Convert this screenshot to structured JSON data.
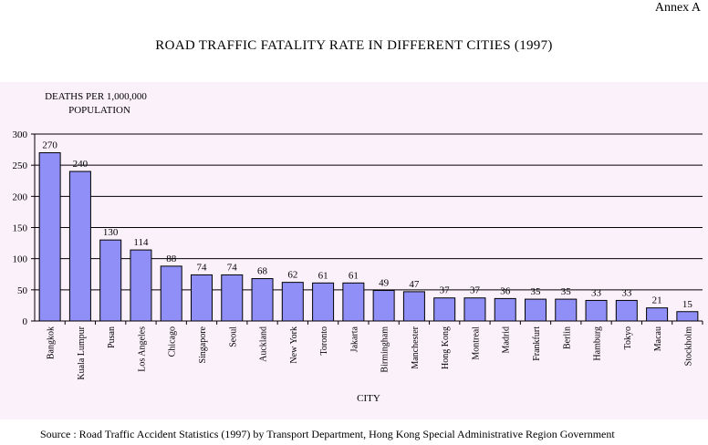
{
  "header": {
    "annex": "Annex A",
    "title": "ROAD TRAFFIC FATALITY RATE IN DIFFERENT CITIES (1997)"
  },
  "footer": {
    "source": "Source : Road Traffic Accident Statistics (1997) by Transport Department, Hong Kong Special Administrative Region Government"
  },
  "chart_data": {
    "type": "bar",
    "title": "ROAD TRAFFIC FATALITY RATE IN DIFFERENT CITIES (1997)",
    "ylabel_lines": [
      "DEATHS PER 1,000,000",
      "POPULATION"
    ],
    "xlabel": "CITY",
    "ylim": [
      0,
      300
    ],
    "yticks": [
      "0",
      "50",
      "100",
      "150",
      "200",
      "250",
      "300"
    ],
    "grid": true,
    "bar_color": "#8f8ff7",
    "categories": [
      "Bangkok",
      "Kuala Lumpur",
      "Pusan",
      "Los Angeles",
      "Chicago",
      "Singapore",
      "Seoul",
      "Auckland",
      "New York",
      "Toronto",
      "Jakarta",
      "Birmingham",
      "Manchester",
      "Hong Kong",
      "Montreal",
      "Madrid",
      "Frankfurt",
      "Berlin",
      "Hamburg",
      "Tokyo",
      "Macau",
      "Stockholm"
    ],
    "values": [
      270,
      240,
      130,
      114,
      88,
      74,
      74,
      68,
      62,
      61,
      61,
      49,
      47,
      37,
      37,
      36,
      35,
      35,
      33,
      33,
      21,
      15
    ]
  }
}
